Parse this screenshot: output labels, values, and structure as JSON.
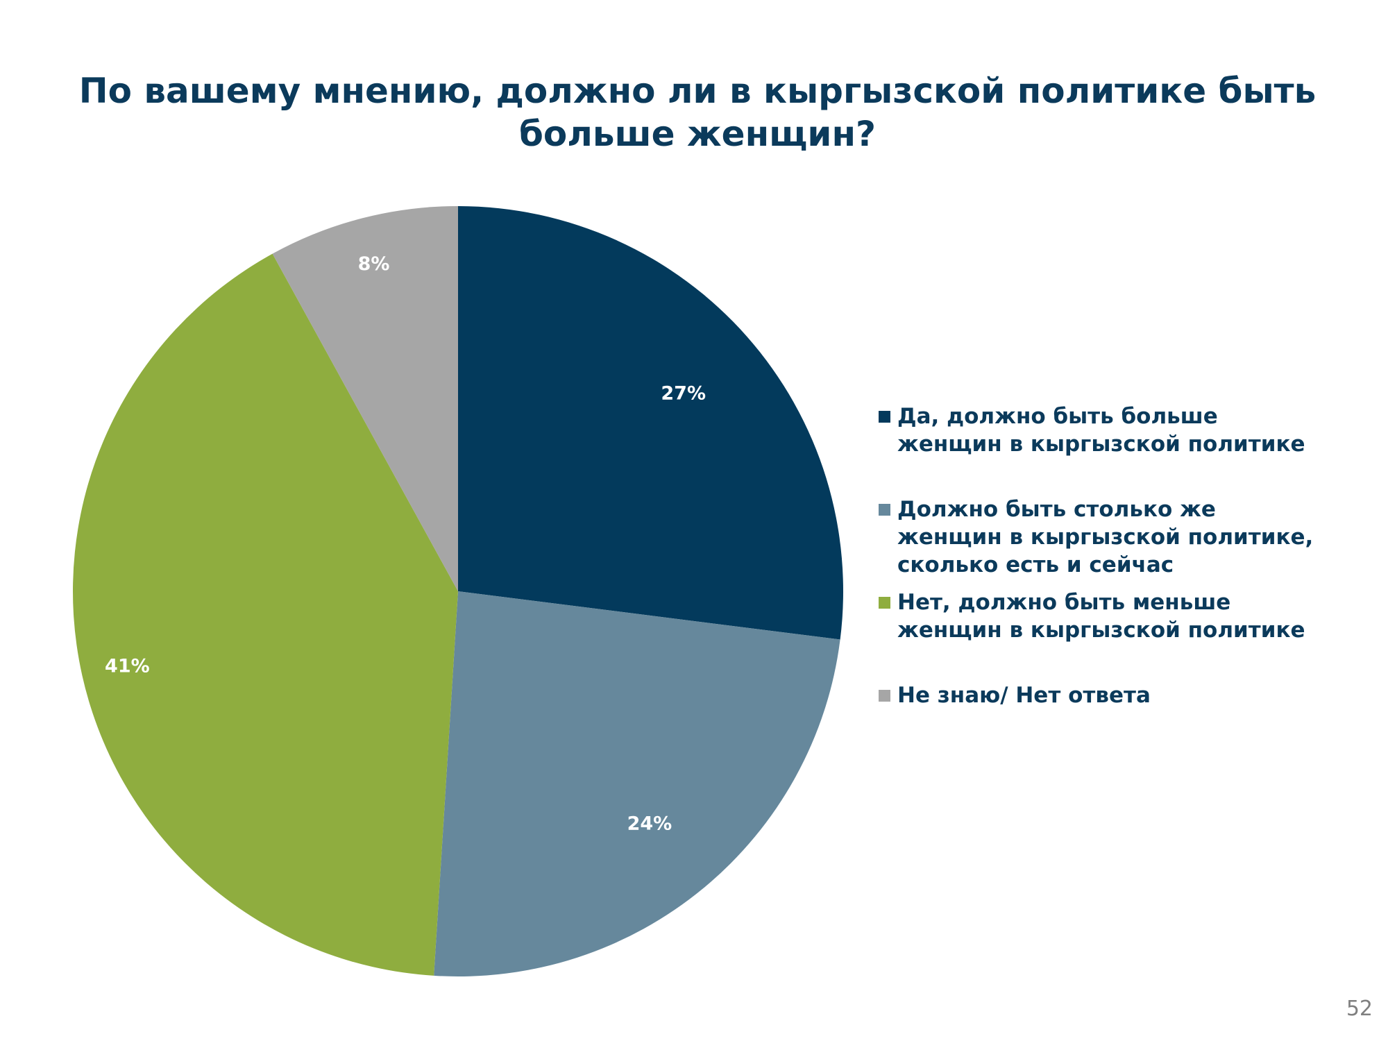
{
  "chart_data": {
    "type": "pie",
    "title": "По вашему мнению, должно ли в кыргызской политике быть больше женщин?",
    "categories": [
      "Да, должно быть больше\nженщин в кыргызской политике",
      "Должно быть столько же\nженщин в кыргызской политике,\nсколько есть и сейчас",
      "Нет, должно быть меньше\nженщин в кыргызской политике",
      "Не знаю/ Нет ответа"
    ],
    "values": [
      27,
      24,
      41,
      8
    ],
    "data_labels": [
      "27%",
      "24%",
      "41%",
      "8%"
    ],
    "colors": [
      "#033a5c",
      "#66889c",
      "#8fad3f",
      "#a6a6a6"
    ],
    "legend_position": "right",
    "start_angle": "top, clockwise"
  },
  "page_number": "52"
}
